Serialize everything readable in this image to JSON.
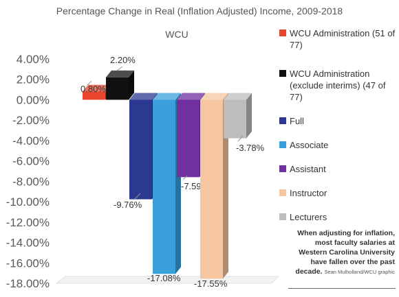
{
  "title": "Percentage Change in Real (Inflation Adjusted) Income, 2009-2018",
  "caption": {
    "text": "When adjusting for inflation, most faculty salaries at Western Carolina University have fallen over the past decade.",
    "credit": "Sean Mulholland/WCU graphic"
  },
  "chart_data": {
    "type": "bar",
    "title": "WCU",
    "categories": [
      "WCU"
    ],
    "ylim": [
      -18,
      4
    ],
    "yticks": [
      "4.00%",
      "2.00%",
      "0.00%",
      "-2.00%",
      "-4.00%",
      "-6.00%",
      "-8.00%",
      "-10.00%",
      "-12.00%",
      "-14.00%",
      "-16.00%",
      "-18.00%"
    ],
    "ytick_values": [
      4,
      2,
      0,
      -2,
      -4,
      -6,
      -8,
      -10,
      -12,
      -14,
      -16,
      -18
    ],
    "grid": false,
    "legend": "right",
    "series": [
      {
        "name": "WCU Administration (51 of 77)",
        "values": [
          0.8
        ],
        "label": "0.80%",
        "color": "#e8452c"
      },
      {
        "name": "WCU Administration (exclude interims) (47 of 77)",
        "values": [
          2.2
        ],
        "label": "2.20%",
        "color": "#111111"
      },
      {
        "name": "Full",
        "values": [
          -9.76
        ],
        "label": "-9.76%",
        "color": "#2b3990"
      },
      {
        "name": "Associate",
        "values": [
          -17.08
        ],
        "label": "-17.08%",
        "color": "#3aa0dc"
      },
      {
        "name": "Assistant",
        "values": [
          -7.59
        ],
        "label": "-7.59%",
        "color": "#7030a0"
      },
      {
        "name": "Instructor",
        "values": [
          -17.55
        ],
        "label": "-17.55%",
        "color": "#f5c6a0"
      },
      {
        "name": "Lecturers",
        "values": [
          -3.78
        ],
        "label": "-3.78%",
        "color": "#bdbdbd"
      }
    ]
  }
}
